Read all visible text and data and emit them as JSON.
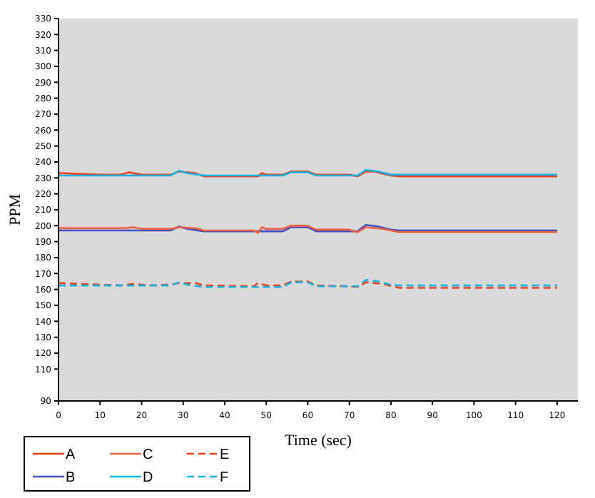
{
  "chart_data": {
    "type": "line",
    "xlabel": "Time (sec)",
    "ylabel": "PPM",
    "xlim": [
      0,
      125
    ],
    "xticks": [
      0,
      10,
      20,
      30,
      40,
      50,
      60,
      70,
      80,
      90,
      100,
      110,
      120
    ],
    "ylim": [
      90,
      330
    ],
    "yticks": [
      90,
      110,
      120,
      130,
      140,
      150,
      160,
      170,
      180,
      190,
      200,
      210,
      220,
      230,
      240,
      250,
      260,
      270,
      280,
      290,
      300,
      310,
      320,
      330
    ],
    "grid": false,
    "legend": "bottom left",
    "series": [
      {
        "name": "A",
        "color": "#e8401c",
        "line_style": "solid",
        "x": [
          0,
          10,
          15,
          17,
          20,
          27,
          29,
          33,
          35,
          45,
          48,
          49,
          50,
          54,
          56,
          60,
          62,
          70,
          72,
          74,
          76,
          80,
          82,
          120
        ],
        "values": [
          233,
          232,
          232,
          233.5,
          232,
          232,
          234,
          233,
          231,
          231,
          231,
          233,
          232,
          232,
          234,
          234,
          232,
          232,
          231,
          234,
          234,
          231.5,
          231,
          231
        ]
      },
      {
        "name": "B",
        "color": "#4050c0",
        "line_style": "solid",
        "x": [
          0,
          27,
          29,
          31,
          35,
          48,
          54,
          56,
          60,
          62,
          72,
          74,
          77,
          80,
          82,
          120
        ],
        "values": [
          197,
          197,
          199.5,
          198,
          196.5,
          196.5,
          196.5,
          199,
          199,
          196.5,
          196.5,
          200.5,
          199.5,
          197.5,
          197,
          197
        ]
      },
      {
        "name": "C",
        "color": "#f06040",
        "line_style": "solid",
        "x": [
          0,
          16,
          18,
          20,
          27,
          29,
          33,
          35,
          47,
          48,
          49,
          50,
          54,
          56,
          60,
          62,
          70,
          72,
          74,
          78,
          82,
          120
        ],
        "values": [
          198.5,
          198.5,
          199,
          198,
          198,
          199,
          198.5,
          197,
          197,
          195.5,
          199,
          198,
          198,
          200,
          200,
          197.5,
          197.5,
          196,
          199,
          198,
          196,
          196
        ]
      },
      {
        "name": "D",
        "color": "#1ab0e0",
        "line_style": "solid",
        "x": [
          0,
          27,
          29,
          31,
          35,
          54,
          56,
          60,
          62,
          72,
          74,
          77,
          80,
          120
        ],
        "values": [
          231.5,
          231.5,
          234.5,
          233,
          231.5,
          231.5,
          233.5,
          233.5,
          231.5,
          231.5,
          235,
          234,
          232,
          232
        ]
      },
      {
        "name": "E",
        "color": "#e8401c",
        "line_style": "dashed",
        "x": [
          0,
          15,
          18,
          22,
          27,
          29,
          33,
          35,
          47,
          48,
          50,
          54,
          56,
          60,
          62,
          70,
          72,
          74,
          78,
          82,
          120
        ],
        "values": [
          164,
          162.5,
          163.5,
          162.5,
          163,
          164,
          164,
          162.5,
          162,
          164,
          162.5,
          162.5,
          165,
          165,
          162.5,
          162,
          161.5,
          164.5,
          163.5,
          161,
          161
        ]
      },
      {
        "name": "F",
        "color": "#1ab0e0",
        "line_style": "dashed",
        "x": [
          0,
          27,
          29,
          31,
          35,
          54,
          56,
          60,
          62,
          72,
          74,
          77,
          80,
          82,
          120
        ],
        "values": [
          162.5,
          162.5,
          164.5,
          163,
          161.5,
          161.5,
          164.5,
          164.5,
          162,
          162,
          166,
          165,
          163,
          162.5,
          162.5
        ]
      }
    ]
  }
}
